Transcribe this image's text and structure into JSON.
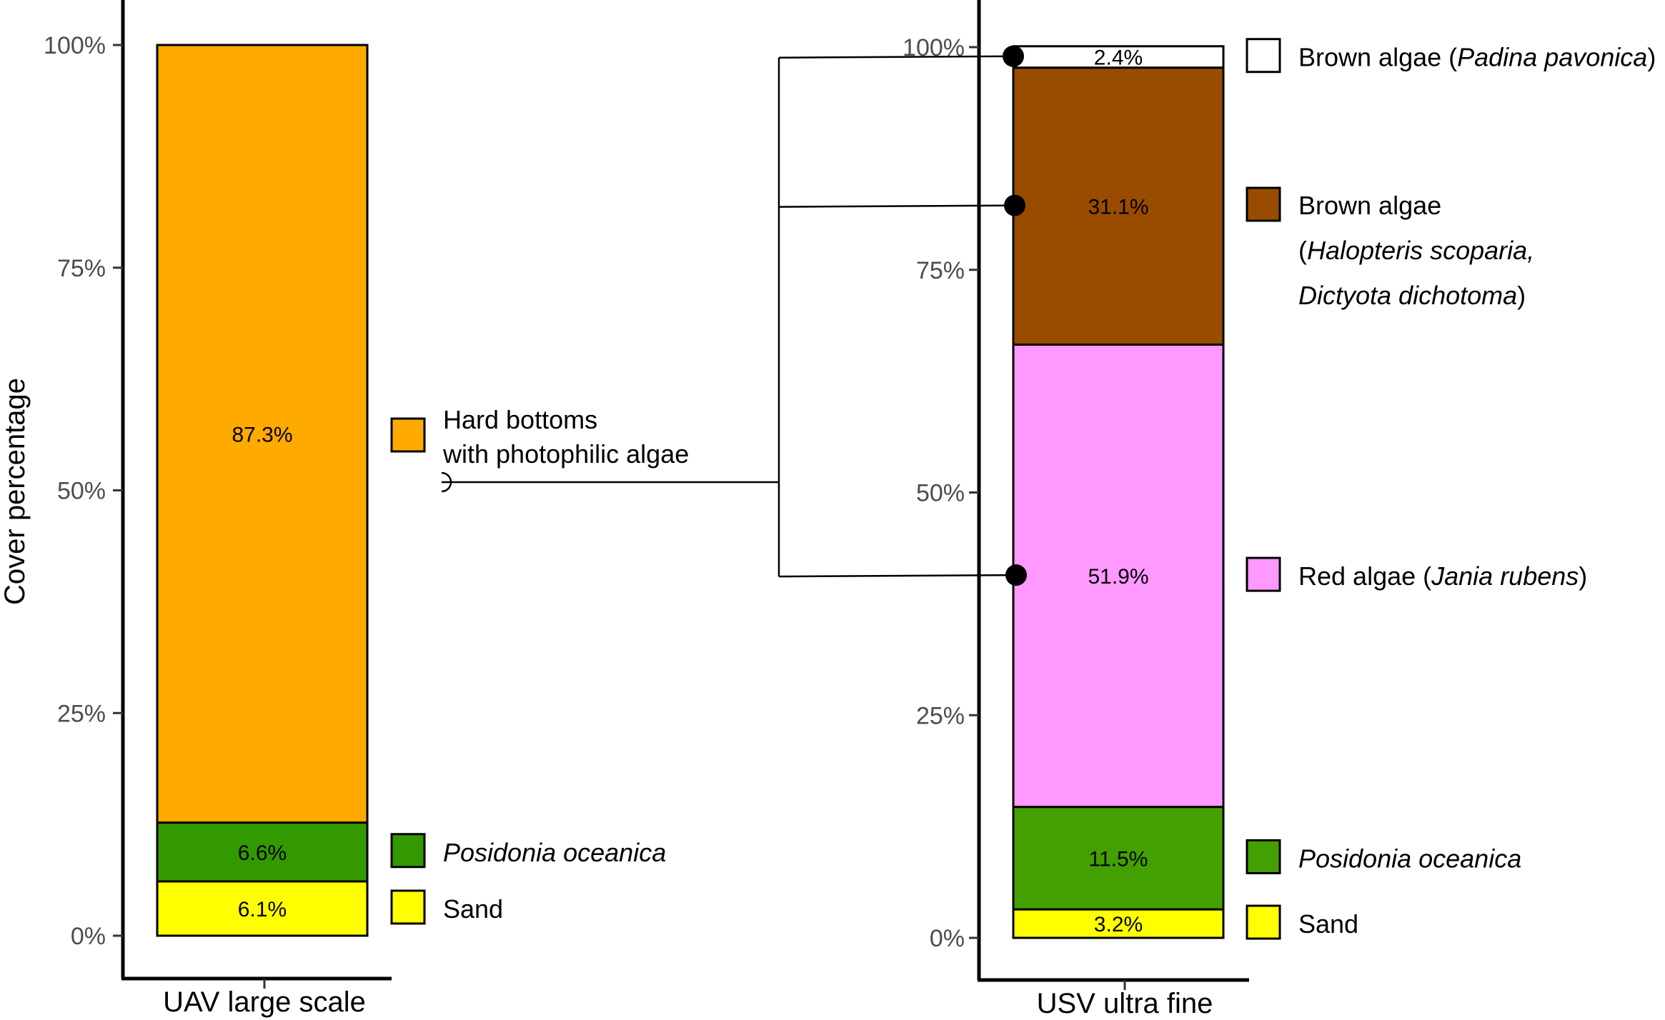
{
  "chart_data": [
    {
      "type": "bar",
      "stacked": true,
      "ylabel": "Cover percentage",
      "ylim": [
        0,
        100
      ],
      "y_ticks": [
        "0%",
        "25%",
        "50%",
        "75%",
        "100%"
      ],
      "categories": [
        "UAV large scale"
      ],
      "series": [
        {
          "name": "Sand",
          "values": [
            6.1
          ],
          "value_label": "6.1%",
          "color": "#ffff00"
        },
        {
          "name": "Posidonia oceanica",
          "values": [
            6.6
          ],
          "value_label": "6.6%",
          "color": "#339900"
        },
        {
          "name": "Hard bottoms with photophilic algae",
          "values": [
            87.3
          ],
          "value_label": "87.3%",
          "color": "#ffaa00"
        }
      ],
      "legend": [
        {
          "parts": [
            {
              "text": "Hard bottoms",
              "italic": false
            }
          ],
          "line2": [
            {
              "text": "with photophilic algae",
              "italic": false
            }
          ],
          "color": "#ffaa00"
        },
        {
          "parts": [
            {
              "text": "Posidonia oceanica",
              "italic": true
            }
          ],
          "color": "#339900"
        },
        {
          "parts": [
            {
              "text": "Sand",
              "italic": false
            }
          ],
          "color": "#ffff00"
        }
      ]
    },
    {
      "type": "bar",
      "stacked": true,
      "ylim": [
        0,
        100
      ],
      "y_ticks": [
        "0%",
        "25%",
        "50%",
        "75%",
        "100%"
      ],
      "categories": [
        "USV ultra fine"
      ],
      "series": [
        {
          "name": "Sand",
          "values": [
            3.2
          ],
          "value_label": "3.2%",
          "color": "#ffff00"
        },
        {
          "name": "Posidonia oceanica",
          "values": [
            11.5
          ],
          "value_label": "11.5%",
          "color": "#44a000"
        },
        {
          "name": "Red algae (Jania rubens)",
          "values": [
            51.9
          ],
          "value_label": "51.9%",
          "color": "#ff99ff"
        },
        {
          "name": "Brown algae (Halopteris scoparia, Dictyota dichotoma)",
          "values": [
            31.1
          ],
          "value_label": "31.1%",
          "color": "#994c00"
        },
        {
          "name": "Brown algae (Padina pavonica)",
          "values": [
            2.4
          ],
          "value_label": "2.4%",
          "color": "#ffffff"
        }
      ],
      "legend": [
        {
          "parts": [
            {
              "text": "Brown algae (",
              "italic": false
            },
            {
              "text": "Padina pavonica",
              "italic": true
            },
            {
              "text": ")",
              "italic": false
            }
          ],
          "color": "#ffffff"
        },
        {
          "parts": [
            {
              "text": "Brown algae",
              "italic": false
            }
          ],
          "line2": [
            {
              "text": "(",
              "italic": false
            },
            {
              "text": "Halopteris scoparia,",
              "italic": true
            }
          ],
          "line3": [
            {
              "text": "Dictyota dichotoma",
              "italic": true
            },
            {
              "text": ")",
              "italic": false
            }
          ],
          "color": "#994c00"
        },
        {
          "parts": [
            {
              "text": "Red algae (",
              "italic": false
            },
            {
              "text": "Jania rubens",
              "italic": true
            },
            {
              "text": ")",
              "italic": false
            }
          ],
          "color": "#ff99ff"
        },
        {
          "parts": [
            {
              "text": "Posidonia oceanica",
              "italic": true
            }
          ],
          "color": "#44a000"
        },
        {
          "parts": [
            {
              "text": "Sand",
              "italic": false
            }
          ],
          "color": "#ffff00"
        }
      ]
    }
  ]
}
